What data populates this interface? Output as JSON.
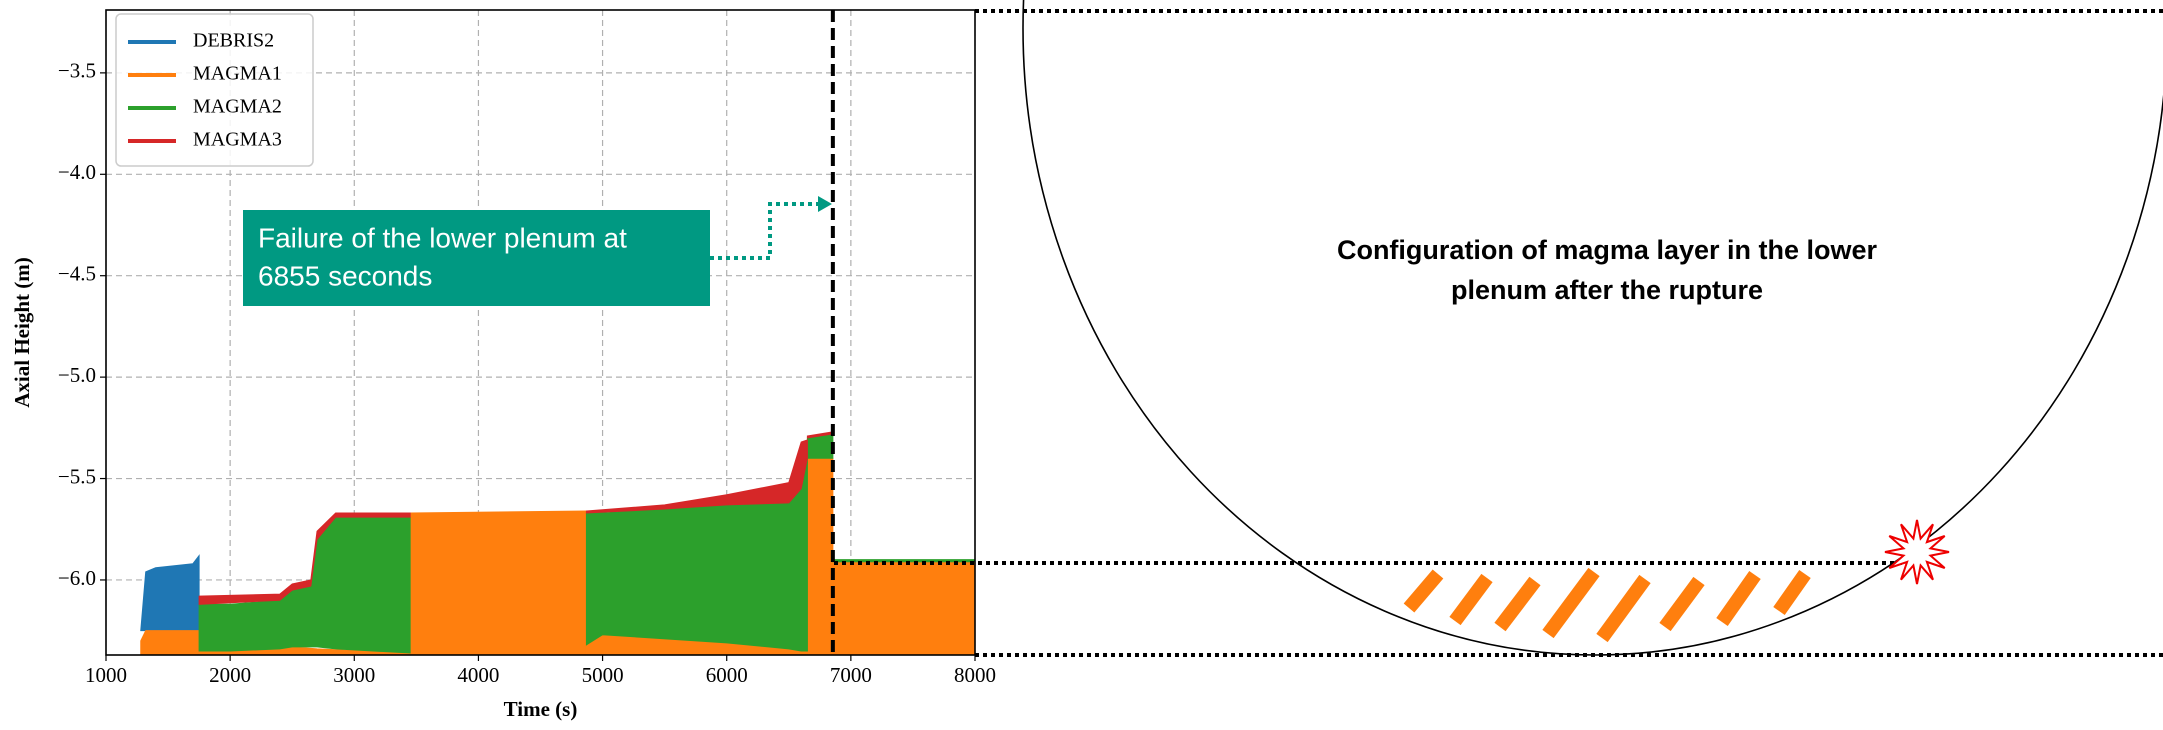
{
  "chart_data": {
    "type": "area",
    "xlabel": "Time (s)",
    "ylabel": "Axial Height (m)",
    "xlim": [
      1000,
      8000
    ],
    "xticks": [
      1000,
      2000,
      3000,
      4000,
      5000,
      6000,
      7000,
      8000
    ],
    "ylim": [
      -6.37,
      -3.19
    ],
    "yticks": [
      {
        "value": -6.0,
        "label": "−6.0"
      },
      {
        "value": -5.5,
        "label": "−5.5"
      },
      {
        "value": -5.0,
        "label": "−5.0"
      },
      {
        "value": -4.5,
        "label": "−4.5"
      },
      {
        "value": -4.0,
        "label": "−4.0"
      },
      {
        "value": -3.5,
        "label": "−3.5"
      }
    ],
    "grid": true,
    "legend": "upper left",
    "series": [
      {
        "name": "DEBRIS2",
        "color": "#1f77b4",
        "x": [
          1280,
          1320,
          1400,
          1700,
          1750
        ],
        "low": [
          -6.25,
          -6.25,
          -6.25,
          -6.25,
          -6.25
        ],
        "high": [
          -6.25,
          -5.96,
          -5.94,
          -5.92,
          -5.88
        ]
      },
      {
        "name": "MAGMA1",
        "color": "#ff7f0e",
        "x": [
          1280,
          1320,
          1750,
          null,
          1750,
          2500,
          2700,
          3450,
          null,
          3450,
          4870,
          null,
          4870,
          5000,
          6000,
          6650,
          null,
          6650,
          6855,
          null,
          6855,
          8000
        ],
        "low": [
          -6.37,
          -6.37,
          -6.37,
          null,
          -6.37,
          -6.37,
          -6.37,
          -6.37,
          null,
          -6.37,
          -6.37,
          null,
          -6.37,
          -6.37,
          -6.37,
          -6.37,
          null,
          -6.37,
          -6.37,
          null,
          -6.37,
          -6.37
        ],
        "high": [
          -6.3,
          -6.25,
          -6.25,
          null,
          -6.35,
          -6.33,
          -6.34,
          -6.36,
          null,
          -5.67,
          -5.66,
          null,
          -6.32,
          -6.27,
          -6.31,
          -6.35,
          null,
          -5.4,
          -5.4,
          null,
          -5.91,
          -5.91
        ]
      },
      {
        "name": "MAGMA2",
        "color": "#2ca02c",
        "x": [
          1750,
          2000,
          2400,
          2500,
          2650,
          2700,
          2850,
          3450,
          null,
          4870,
          5000,
          6000,
          6500,
          6600,
          6650,
          null,
          6650,
          6855,
          null,
          6855,
          8000
        ],
        "low": [
          -6.35,
          -6.35,
          -6.34,
          -6.33,
          -6.33,
          -6.33,
          -6.34,
          -6.36,
          null,
          -6.32,
          -6.27,
          -6.31,
          -6.34,
          -6.35,
          -6.35,
          null,
          -5.4,
          -5.4,
          null,
          -5.91,
          -5.91
        ],
        "high": [
          -6.12,
          -6.12,
          -6.1,
          -6.05,
          -6.03,
          -5.8,
          -5.69,
          -5.69,
          null,
          -5.67,
          -5.67,
          -5.63,
          -5.62,
          -5.55,
          -5.4,
          null,
          -5.3,
          -5.28,
          null,
          -5.9,
          -5.9
        ]
      },
      {
        "name": "MAGMA3",
        "color": "#d62728",
        "x": [
          1750,
          2400,
          2500,
          2650,
          2700,
          2850,
          3450,
          null,
          4870,
          5500,
          6000,
          6500,
          6600,
          6650,
          null,
          6650,
          6855
        ],
        "low": [
          -6.12,
          -6.1,
          -6.05,
          -6.03,
          -5.8,
          -5.69,
          -5.69,
          null,
          -5.67,
          -5.65,
          -5.63,
          -5.62,
          -5.55,
          -5.4,
          null,
          -5.3,
          -5.28
        ],
        "high": [
          -6.08,
          -6.07,
          -6.02,
          -6.0,
          -5.76,
          -5.67,
          -5.67,
          null,
          -5.66,
          -5.63,
          -5.58,
          -5.52,
          -5.32,
          -5.31,
          null,
          -5.29,
          -5.27
        ]
      }
    ],
    "vline": 6855,
    "annotation": [
      "Failure of the lower plenum at",
      "6855 seconds"
    ]
  },
  "diagram": {
    "caption": [
      "Configuration of magma layer in the lower",
      "plenum after the rupture"
    ]
  }
}
